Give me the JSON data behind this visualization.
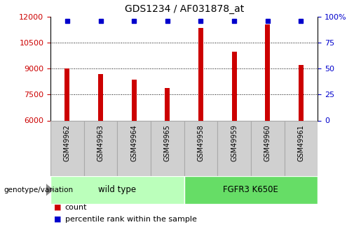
{
  "title": "GDS1234 / AF031878_at",
  "categories": [
    "GSM49962",
    "GSM49963",
    "GSM49964",
    "GSM49965",
    "GSM49958",
    "GSM49959",
    "GSM49960",
    "GSM49961"
  ],
  "bar_values": [
    9000,
    8700,
    8350,
    7900,
    11350,
    10000,
    11550,
    9200
  ],
  "percentile_values": [
    100,
    100,
    100,
    100,
    100,
    100,
    100,
    100
  ],
  "bar_color": "#cc0000",
  "percentile_color": "#0000cc",
  "ylim_left": [
    6000,
    12000
  ],
  "ylim_right": [
    0,
    100
  ],
  "yticks_left": [
    6000,
    7500,
    9000,
    10500,
    12000
  ],
  "yticks_right": [
    0,
    25,
    50,
    75,
    100
  ],
  "grid_values": [
    7500,
    9000,
    10500
  ],
  "groups": [
    {
      "label": "wild type",
      "start": 0,
      "end": 3,
      "color": "#bbffbb"
    },
    {
      "label": "FGFR3 K650E",
      "start": 4,
      "end": 7,
      "color": "#66dd66"
    }
  ],
  "genotype_label": "genotype/variation",
  "legend_count_label": "count",
  "legend_percentile_label": "percentile rank within the sample",
  "bar_width": 0.15,
  "tick_label_box_color": "#d0d0d0",
  "tick_label_box_edge_color": "#aaaaaa"
}
